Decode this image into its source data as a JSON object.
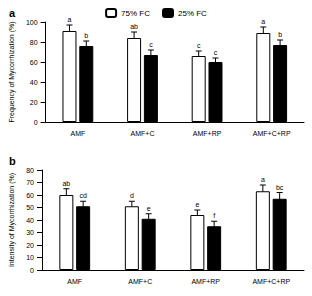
{
  "chart_data": [
    {
      "type": "bar",
      "title": "a",
      "y_label": "Frequency of Mycorrhization (%)",
      "categories": [
        "AMF",
        "AMF+C",
        "AMF+RP",
        "AMF+C+RP"
      ],
      "series": [
        {
          "name": "75% FC",
          "color": "#ffffff",
          "values": [
            91,
            84,
            66,
            89
          ],
          "errors": [
            6,
            6,
            5,
            6
          ],
          "letters": [
            "a",
            "ab",
            "c",
            "a"
          ]
        },
        {
          "name": "25% FC",
          "color": "#000000",
          "values": [
            76,
            67,
            60,
            77
          ],
          "errors": [
            5,
            5,
            4,
            5
          ],
          "letters": [
            "b",
            "c",
            "c",
            "b"
          ]
        }
      ],
      "ylim": [
        0,
        100
      ],
      "yticks": [
        0,
        20,
        40,
        60,
        80,
        100
      ],
      "grid": false,
      "legend": "top"
    },
    {
      "type": "bar",
      "title": "b",
      "y_label": "Intensity of Mycorrhization (%)",
      "categories": [
        "AMF",
        "AMF+C",
        "AMF+RP",
        "AMF+C+RP"
      ],
      "series": [
        {
          "name": "75% FC",
          "color": "#ffffff",
          "values": [
            60,
            51,
            44,
            63
          ],
          "errors": [
            5,
            4,
            4,
            5
          ],
          "letters": [
            "ab",
            "d",
            "e",
            "a"
          ]
        },
        {
          "name": "25% FC",
          "color": "#000000",
          "values": [
            51,
            41,
            35,
            57
          ],
          "errors": [
            4,
            4,
            4,
            5
          ],
          "letters": [
            "cd",
            "e",
            "f",
            "bc"
          ]
        }
      ],
      "ylim": [
        0,
        80
      ],
      "yticks": [
        0,
        10,
        20,
        30,
        40,
        50,
        60,
        70,
        80
      ],
      "grid": false
    }
  ]
}
